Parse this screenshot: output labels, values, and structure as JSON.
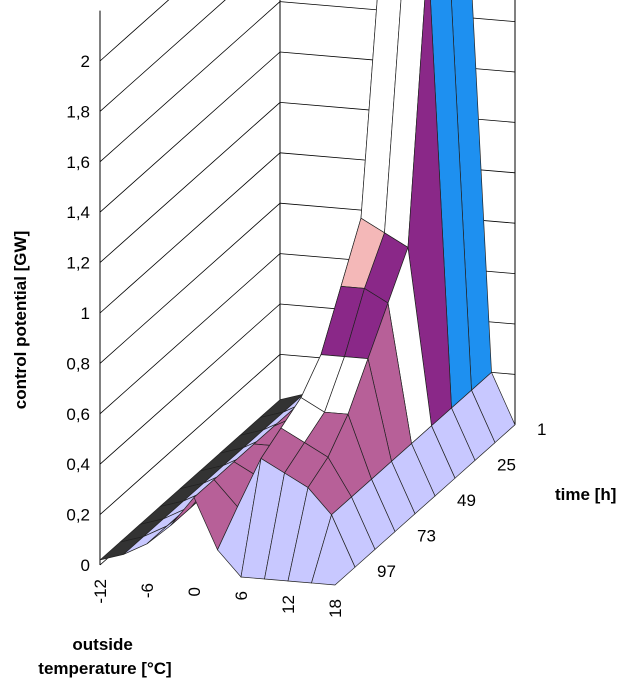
{
  "chart_data": {
    "type": "surface",
    "title": "",
    "zlabel": "control potential [GW]",
    "xlabel": "outside temperature [°C]",
    "ylabel": "time [h]",
    "z_ticks": [
      "0",
      "0,2",
      "0,4",
      "0,6",
      "0,8",
      "1",
      "1,2",
      "1,4",
      "1,6",
      "1,8",
      "2"
    ],
    "zlim": [
      0,
      2
    ],
    "x_ticks": [
      "-12",
      "-6",
      "0",
      "6",
      "12",
      "18"
    ],
    "x_tick_values": [
      -12,
      -6,
      0,
      6,
      12,
      18
    ],
    "y_ticks": [
      "1",
      "25",
      "49",
      "73",
      "97"
    ],
    "y_tick_values": [
      1,
      25,
      49,
      73,
      97
    ],
    "temperature_values": [
      -12,
      -9,
      -6,
      -3,
      0,
      3,
      6,
      9,
      12,
      15,
      18
    ],
    "time_values": [
      1,
      13,
      25,
      37,
      49,
      61,
      73,
      85,
      97,
      109
    ],
    "z_values_by_temperature": [
      [
        0.02,
        0.02,
        0.02,
        0.02,
        0.02,
        0.02,
        0.02,
        0.02,
        0.02,
        0.02
      ],
      [
        0.05,
        0.05,
        0.05,
        0.05,
        0.05,
        0.05,
        0.05,
        0.05,
        0.05,
        0.05
      ],
      [
        0.1,
        0.1,
        0.1,
        0.1,
        0.1,
        0.1,
        0.1,
        0.1,
        0.1,
        0.1
      ],
      [
        0.18,
        0.18,
        0.18,
        0.18,
        0.18,
        0.18,
        0.18,
        0.18,
        0.18,
        0.18
      ],
      [
        0.3,
        0.3,
        0.3,
        0.3,
        0.3,
        0.3,
        0.3,
        0.3,
        0.3,
        0.3
      ],
      [
        0.5,
        0.5,
        0.5,
        0.45,
        0.4,
        0.35,
        0.3,
        0.25,
        0.2,
        0.1
      ],
      [
        2.0,
        2.0,
        2.0,
        1.0,
        0.8,
        0.6,
        0.5,
        0.45,
        0.4,
        0.0
      ],
      [
        2.0,
        2.0,
        2.0,
        0.95,
        0.8,
        0.6,
        0.45,
        0.4,
        0.35,
        0.0
      ],
      [
        2.0,
        2.0,
        2.0,
        0.9,
        0.75,
        0.6,
        0.45,
        0.35,
        0.3,
        0.0
      ],
      [
        0.2,
        0.2,
        0.2,
        0.2,
        0.2,
        0.2,
        0.2,
        0.2,
        0.2,
        0.0
      ],
      [
        0.0,
        0.0,
        0.0,
        0.0,
        0.0,
        0.0,
        0.0,
        0.0,
        0.0,
        0.0
      ]
    ],
    "band_colors": [
      "#c8c8ff",
      "#b76098",
      "#ffffff",
      "#8a2888",
      "#f4b8b8",
      "#1e90f0",
      "#ffffff",
      "#303090",
      "#e040e0"
    ],
    "floor_color": "#333333",
    "grid": true
  }
}
